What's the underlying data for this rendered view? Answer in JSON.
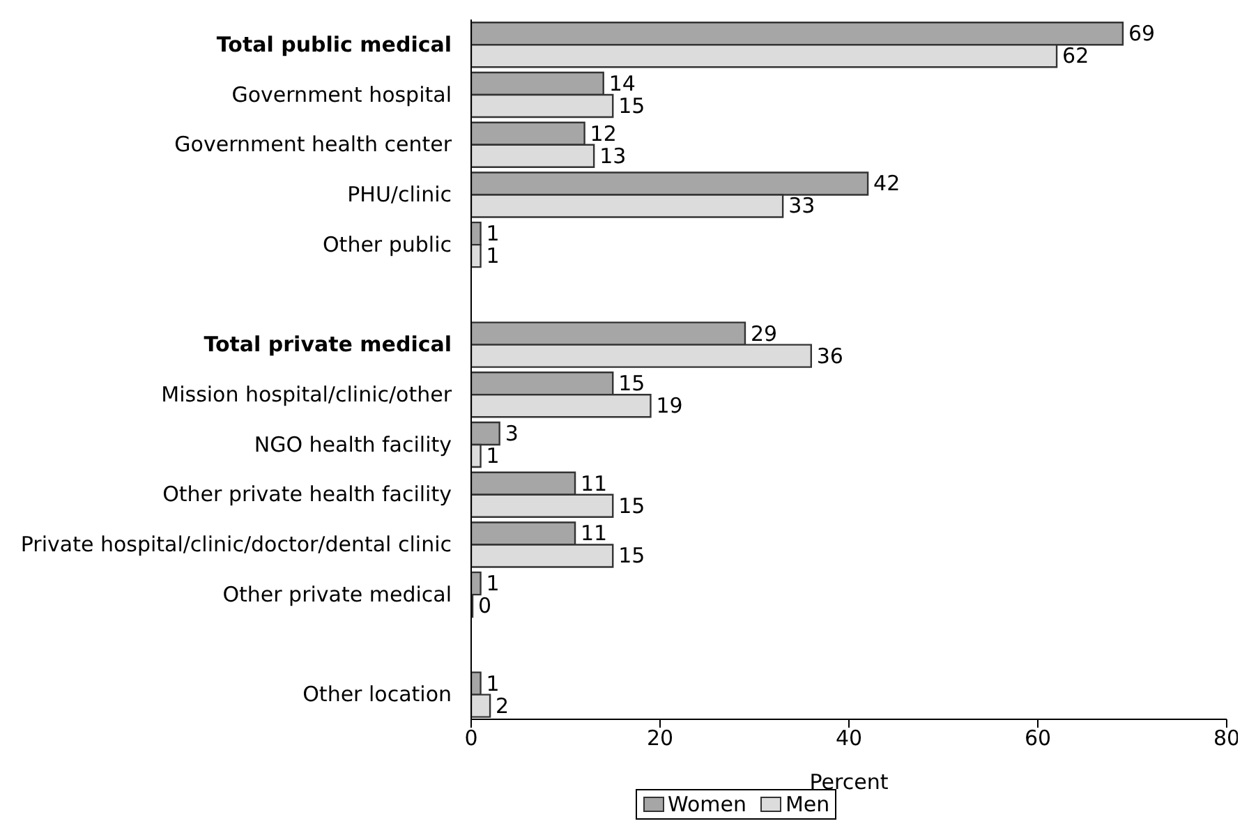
{
  "chart_data": {
    "type": "bar",
    "orientation": "horizontal",
    "xlabel": "Percent",
    "categories": [
      "Total public medical",
      "Government hospital",
      "Government health center",
      "PHU/clinic",
      "Other public",
      null,
      "Total private medical",
      "Mission hospital/clinic/other",
      "NGO health facility",
      "Other private health facility",
      "Private hospital/clinic/doctor/dental clinic",
      "Other private medical",
      null,
      "Other location"
    ],
    "series": [
      {
        "name": "Women",
        "color": "#a6a6a6",
        "values": [
          69,
          14,
          12,
          42,
          1,
          null,
          29,
          15,
          3,
          11,
          11,
          1,
          null,
          1
        ]
      },
      {
        "name": "Men",
        "color": "#dcdcdc",
        "values": [
          62,
          15,
          13,
          33,
          1,
          null,
          36,
          19,
          1,
          15,
          15,
          0,
          null,
          2
        ]
      }
    ],
    "xlim": [
      0,
      80
    ],
    "xticks": [
      0,
      20,
      40,
      60,
      80
    ],
    "data_labels": true,
    "grid": false,
    "legend": "bottom"
  }
}
